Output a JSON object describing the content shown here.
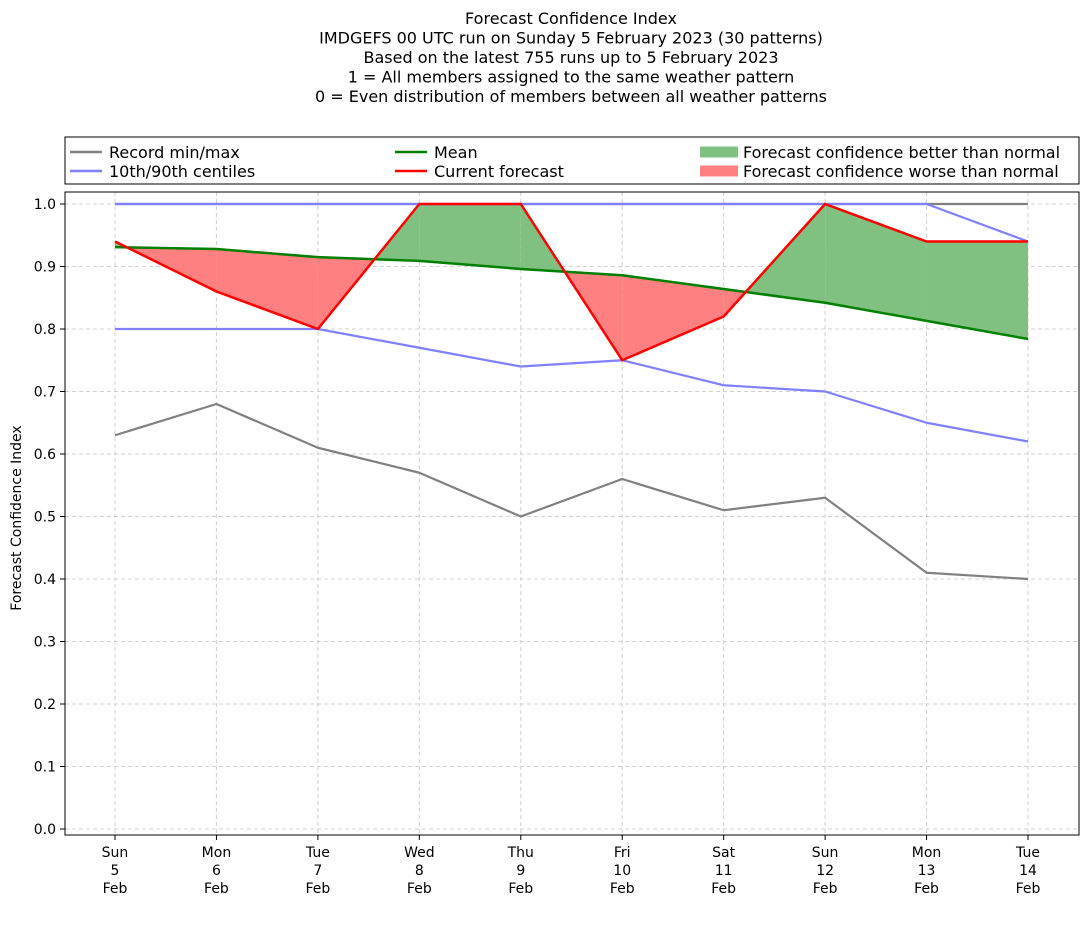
{
  "chart_data": {
    "type": "line",
    "title_lines": [
      "Forecast Confidence Index",
      "IMDGEFS 00 UTC run on Sunday 5 February 2023 (30 patterns)",
      "Based on the latest 755 runs up to 5 February 2023",
      "1 = All members assigned to the same weather pattern",
      "0 = Even distribution of members between all weather patterns"
    ],
    "ylabel": "Forecast Confidence Index",
    "xlabel": "",
    "ylim": [
      0,
      1.0
    ],
    "yticks": [
      "0.0",
      "0.1",
      "0.2",
      "0.3",
      "0.4",
      "0.5",
      "0.6",
      "0.7",
      "0.8",
      "0.9",
      "1.0"
    ],
    "grid": true,
    "categories": [
      [
        "Sun",
        "5",
        "Feb"
      ],
      [
        "Mon",
        "6",
        "Feb"
      ],
      [
        "Tue",
        "7",
        "Feb"
      ],
      [
        "Wed",
        "8",
        "Feb"
      ],
      [
        "Thu",
        "9",
        "Feb"
      ],
      [
        "Fri",
        "10",
        "Feb"
      ],
      [
        "Sat",
        "11",
        "Feb"
      ],
      [
        "Sun",
        "12",
        "Feb"
      ],
      [
        "Mon",
        "13",
        "Feb"
      ],
      [
        "Tue",
        "14",
        "Feb"
      ]
    ],
    "series": [
      {
        "name": "Record min",
        "values": [
          0.63,
          0.68,
          0.61,
          0.57,
          0.5,
          0.56,
          0.51,
          0.53,
          0.41,
          0.4
        ],
        "color": "#808080"
      },
      {
        "name": "Record max",
        "values": [
          1.0,
          1.0,
          1.0,
          1.0,
          1.0,
          1.0,
          1.0,
          1.0,
          1.0,
          1.0
        ],
        "color": "#808080"
      },
      {
        "name": "10th centile",
        "values": [
          0.8,
          0.8,
          0.8,
          0.77,
          0.74,
          0.75,
          0.71,
          0.7,
          0.65,
          0.62
        ],
        "color": "#8080ff"
      },
      {
        "name": "90th centile",
        "values": [
          1.0,
          1.0,
          1.0,
          1.0,
          1.0,
          1.0,
          1.0,
          1.0,
          1.0,
          0.94
        ],
        "color": "#8080ff"
      },
      {
        "name": "Mean",
        "values": [
          0.931,
          0.928,
          0.915,
          0.909,
          0.896,
          0.886,
          0.864,
          0.842,
          0.813,
          0.784
        ],
        "color": "#008000"
      },
      {
        "name": "Current forecast",
        "values": [
          0.94,
          0.86,
          0.8,
          1.0,
          1.0,
          0.75,
          0.82,
          1.0,
          0.94,
          0.94
        ],
        "color": "#ff0000"
      }
    ],
    "fill_better_color": "#80c080",
    "fill_worse_color": "#ff8080",
    "legend": {
      "placement": "top",
      "entries": [
        {
          "label": "Record min/max",
          "kind": "line",
          "color": "#808080"
        },
        {
          "label": "10th/90th centiles",
          "kind": "line",
          "color": "#8080ff"
        },
        {
          "label": "Mean",
          "kind": "line",
          "color": "#008000"
        },
        {
          "label": "Current forecast",
          "kind": "line",
          "color": "#ff0000"
        },
        {
          "label": "Forecast confidence better than normal",
          "kind": "patch",
          "color": "#80c080"
        },
        {
          "label": "Forecast confidence worse than normal",
          "kind": "patch",
          "color": "#ff8080"
        }
      ]
    }
  }
}
